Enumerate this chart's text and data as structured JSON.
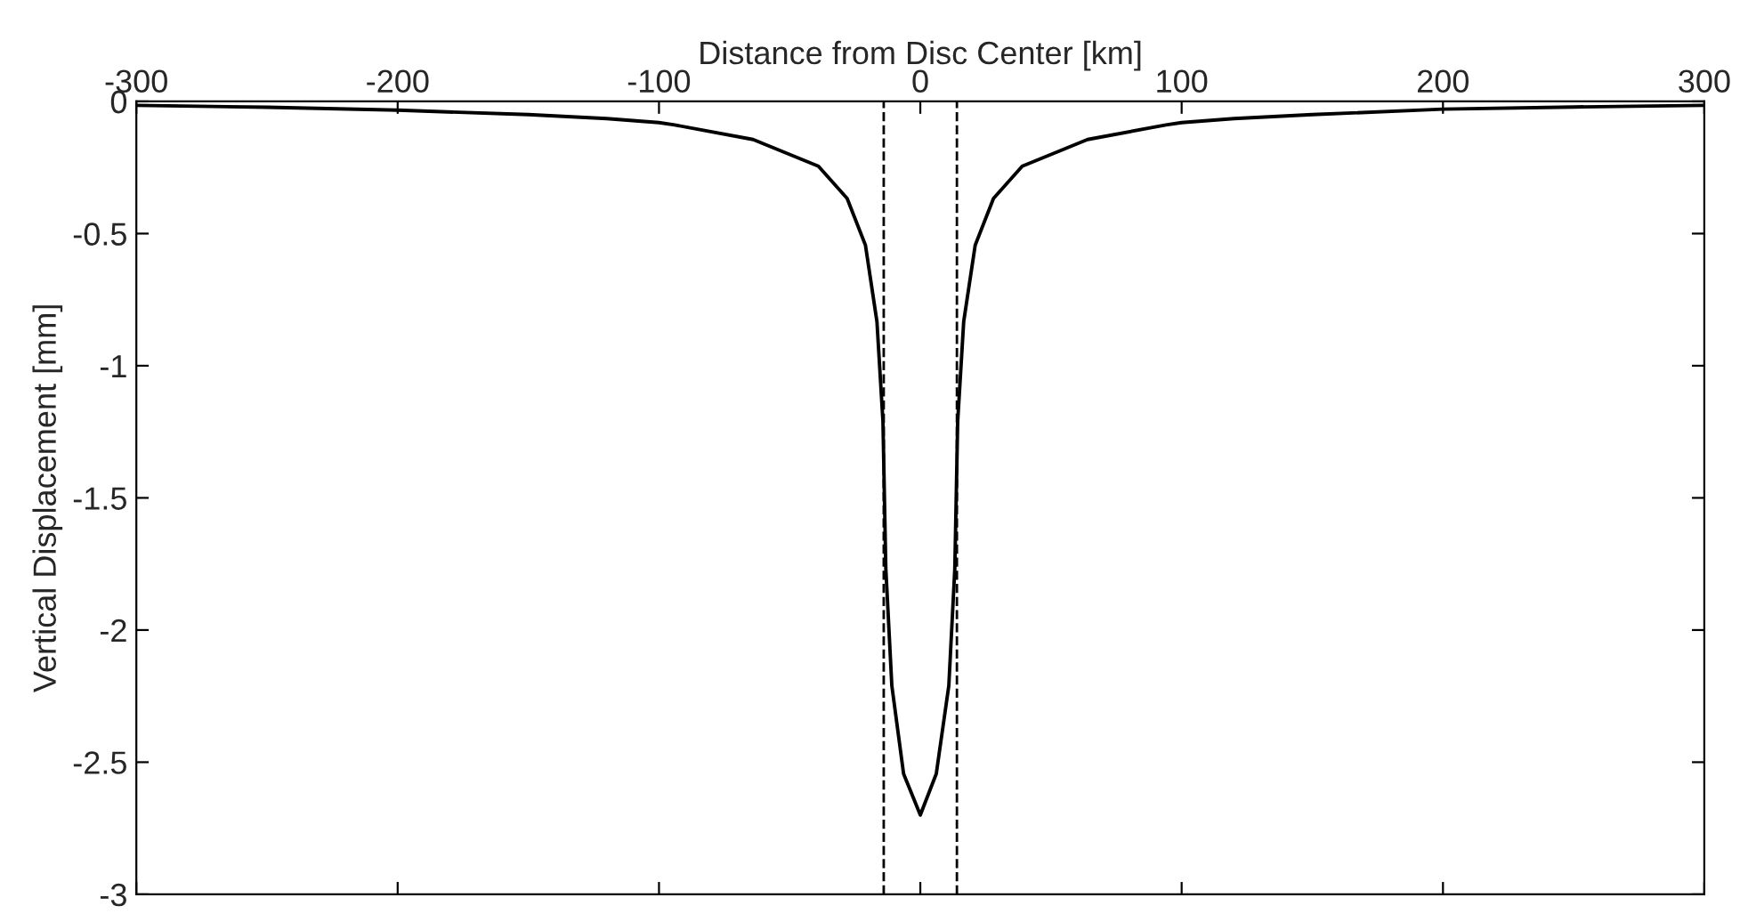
{
  "chart_data": {
    "type": "line",
    "xlabel": "Distance from Disc Center [km]",
    "ylabel": "Vertical Displacement [mm]",
    "series": [
      {
        "color": "#000000",
        "x": [
          -300,
          -250,
          -200,
          -150,
          -120,
          -100,
          -94,
          -64,
          -39,
          -28,
          -21,
          -16.6,
          -14.3,
          -13.2,
          -10.9,
          -6.4,
          0,
          6.1,
          10.9,
          13.2,
          14.3,
          16.6,
          21,
          28,
          39,
          64,
          94,
          100,
          120,
          150,
          200,
          250,
          300
        ],
        "values": [
          -0.015,
          -0.022,
          -0.033,
          -0.05,
          -0.065,
          -0.08,
          -0.089,
          -0.144,
          -0.245,
          -0.367,
          -0.544,
          -0.833,
          -1.211,
          -1.767,
          -2.211,
          -2.544,
          -2.7,
          -2.544,
          -2.211,
          -1.767,
          -1.211,
          -0.833,
          -0.544,
          -0.367,
          -0.245,
          -0.144,
          -0.089,
          -0.08,
          -0.065,
          -0.05,
          -0.029,
          -0.021,
          -0.015
        ]
      }
    ],
    "xlim": [
      -300,
      300
    ],
    "ylim": [
      -3,
      0
    ],
    "xticks": [
      -300,
      -200,
      -100,
      0,
      100,
      200,
      300
    ],
    "yticks": [
      -3,
      -2.5,
      -2,
      -1.5,
      -1,
      -0.5,
      0
    ],
    "ref_lines": [
      {
        "axis": "x",
        "value": -14,
        "color": "#000000",
        "line_style": "dashed"
      },
      {
        "axis": "x",
        "value": 14,
        "color": "#000000",
        "line_style": "dashed"
      }
    ],
    "grid": false,
    "legend": false,
    "line_style": "solid",
    "marker": "none"
  }
}
